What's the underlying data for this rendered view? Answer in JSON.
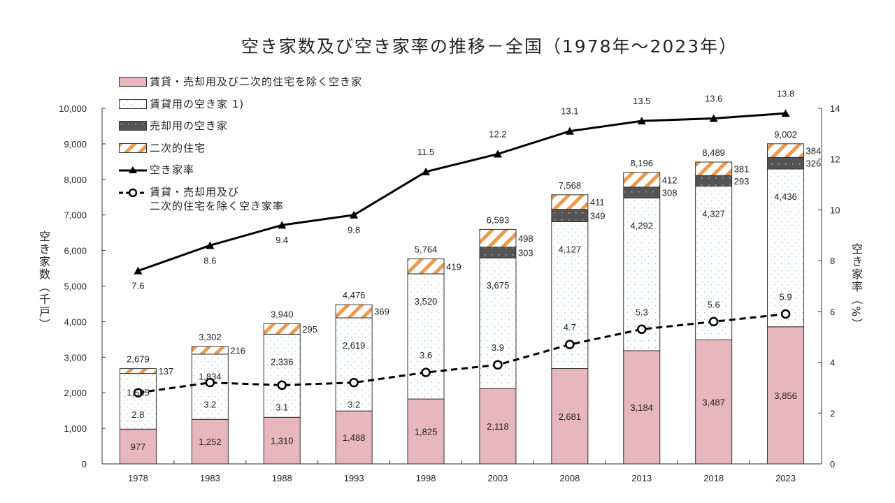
{
  "chart_data": {
    "type": "bar",
    "subtype": "stacked-bar-with-lines",
    "title": "空き家数及び空き家率の推移－全国（1978年～2023年）",
    "categories": [
      "1978",
      "1983",
      "1988",
      "1993",
      "1998",
      "2003",
      "2008",
      "2013",
      "2018",
      "2023"
    ],
    "ylabel": "空き家数（千戸）",
    "ylabel_right": "空き家率（%）",
    "ylim": [
      0,
      10000
    ],
    "ylim_right": [
      0,
      14
    ],
    "yticks": [
      "0",
      "1,000",
      "2,000",
      "3,000",
      "4,000",
      "5,000",
      "6,000",
      "7,000",
      "8,000",
      "9,000",
      "10,000"
    ],
    "yticks_right": [
      "0",
      "2",
      "4",
      "6",
      "8",
      "10",
      "12",
      "14"
    ],
    "grid": false,
    "legend_position": "top-left",
    "series": [
      {
        "name": "賃貸・売却用及び二次的住宅を除く空き家",
        "kind": "bar",
        "axis": "left",
        "color": "#e8b7bb",
        "pattern": "solid",
        "values": [
          977,
          1252,
          1310,
          1488,
          1825,
          2118,
          2681,
          3184,
          3487,
          3856
        ],
        "labels": [
          "977",
          "1,252",
          "1,310",
          "1,488",
          "1,825",
          "2,118",
          "2,681",
          "3,184",
          "3,487",
          "3,856"
        ]
      },
      {
        "name": "賃貸用の空き家 1)",
        "kind": "bar",
        "axis": "left",
        "color": "#ffffff",
        "pattern": "dots",
        "values": [
          1565,
          1834,
          2336,
          2619,
          3520,
          3675,
          4127,
          4292,
          4327,
          4436
        ],
        "labels": [
          "1,565",
          "1,834",
          "2,336",
          "2,619",
          "3,520",
          "3,675",
          "4,127",
          "4,292",
          "4,327",
          "4,436"
        ]
      },
      {
        "name": "売却用の空き家",
        "kind": "bar",
        "axis": "left",
        "color": "#555555",
        "pattern": "dots",
        "values": [
          0,
          0,
          0,
          0,
          0,
          303,
          349,
          308,
          293,
          326
        ],
        "labels": [
          "",
          "",
          "",
          "",
          "",
          "303",
          "349",
          "308",
          "293",
          "326"
        ]
      },
      {
        "name": "二次的住宅",
        "kind": "bar",
        "axis": "left",
        "color": "#f0994a",
        "pattern": "stripes",
        "values": [
          137,
          216,
          295,
          369,
          419,
          498,
          411,
          412,
          381,
          384
        ],
        "labels": [
          "137",
          "216",
          "295",
          "369",
          "419",
          "498",
          "411",
          "412",
          "381",
          "384"
        ]
      },
      {
        "name": "空き家率",
        "kind": "line",
        "axis": "right",
        "color": "#000000",
        "marker": "triangle",
        "line_style": "solid",
        "values": [
          7.6,
          8.6,
          9.4,
          9.8,
          11.5,
          12.2,
          13.1,
          13.5,
          13.6,
          13.8
        ],
        "labels": [
          "7.6",
          "8.6",
          "9.4",
          "9.8",
          "11.5",
          "12.2",
          "13.1",
          "13.5",
          "13.6",
          "13.8"
        ]
      },
      {
        "name": "賃貸・売却用及び\n二次的住宅を除く空き家率",
        "kind": "line",
        "axis": "right",
        "color": "#000000",
        "marker": "circle",
        "line_style": "dashed",
        "values": [
          2.8,
          3.2,
          3.1,
          3.2,
          3.6,
          3.9,
          4.7,
          5.3,
          5.6,
          5.9
        ],
        "labels": [
          "2.8",
          "3.2",
          "3.1",
          "3.2",
          "3.6",
          "3.9",
          "4.7",
          "5.3",
          "5.6",
          "5.9"
        ]
      }
    ],
    "totals": [
      2679,
      3302,
      3940,
      4476,
      5764,
      6593,
      7568,
      8196,
      8489,
      9002
    ],
    "total_labels": [
      "2,679",
      "3,302",
      "3,940",
      "4,476",
      "5,764",
      "6,593",
      "7,568",
      "8,196",
      "8,489",
      "9,002"
    ]
  }
}
